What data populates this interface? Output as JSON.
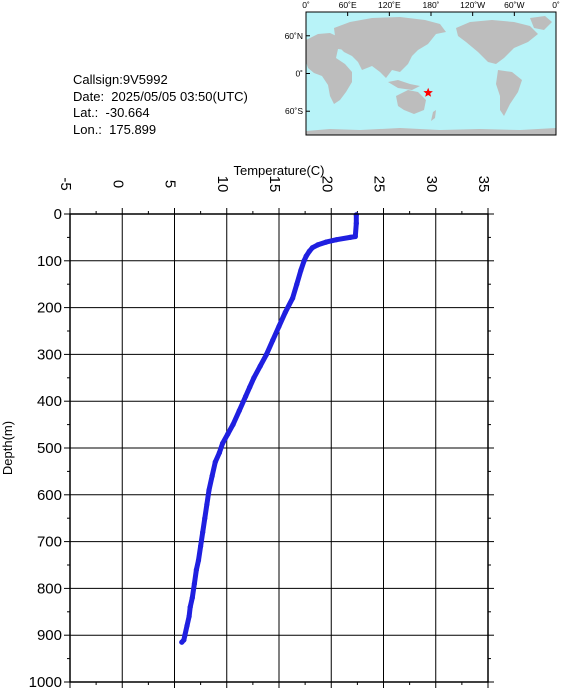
{
  "info": {
    "callsign": "Callsign:9V5992",
    "date": "Date:  2025/05/05 03:50(UTC)",
    "lat": "Lat.:  -30.664",
    "lon": "Lon.:  175.899"
  },
  "map": {
    "lon_labels": [
      "0˚",
      "60˚E",
      "120˚E",
      "180˚",
      "120˚W",
      "60˚W",
      "0˚"
    ],
    "lat_labels": [
      "60˚N",
      "0˚",
      "60˚S"
    ],
    "ocean_color": "#b8f3f8",
    "land_color": "#bdbdbd",
    "marker": {
      "lat": -30.664,
      "lon": 175.899,
      "color": "#ff0000",
      "shape": "star"
    }
  },
  "chart_data": {
    "type": "line",
    "xlabel": "Temperature(C)",
    "ylabel": "Depth(m)",
    "xlim": [
      -5,
      35
    ],
    "ylim": [
      1000,
      0
    ],
    "x_ticks": [
      "-5",
      "0",
      "5",
      "10",
      "15",
      "20",
      "25",
      "30",
      "35"
    ],
    "y_ticks": [
      "0",
      "100",
      "200",
      "300",
      "400",
      "500",
      "600",
      "700",
      "800",
      "900",
      "1000"
    ],
    "grid": true,
    "x_axis_position": "top",
    "series_color": "#1f1fe0",
    "x": [
      22.4,
      22.4,
      22.3,
      21.8,
      20.5,
      19.5,
      18.7,
      18.2,
      17.9,
      17.6,
      17.4,
      17.1,
      16.7,
      16.3,
      15.6,
      15.0,
      14.4,
      13.8,
      13.2,
      12.6,
      12.2,
      11.8,
      11.2,
      10.6,
      10.1,
      9.6,
      9.3,
      8.9,
      8.6,
      8.3,
      8.1,
      7.9,
      7.7,
      7.5,
      7.3,
      7.1,
      6.9,
      6.7,
      6.5,
      6.4,
      6.2,
      6.0,
      5.9,
      5.7
    ],
    "y": [
      2,
      20,
      48,
      50,
      55,
      60,
      66,
      72,
      80,
      90,
      100,
      120,
      150,
      180,
      210,
      240,
      270,
      300,
      325,
      350,
      370,
      390,
      420,
      450,
      470,
      490,
      510,
      530,
      560,
      590,
      620,
      650,
      680,
      710,
      740,
      760,
      790,
      820,
      840,
      860,
      880,
      900,
      910,
      915
    ]
  }
}
